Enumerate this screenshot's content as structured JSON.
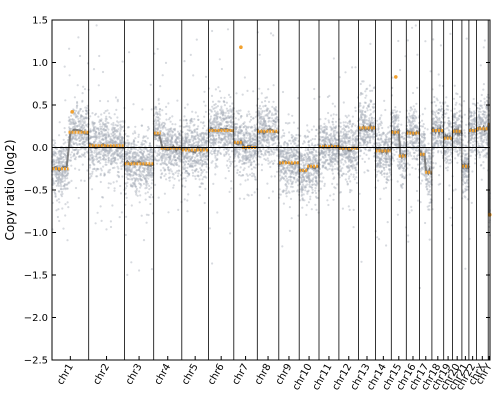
{
  "chart_data": {
    "type": "scatter",
    "title": "",
    "xlabel": "",
    "ylabel": "Copy ratio (log2)",
    "ylim": [
      -2.5,
      1.5
    ],
    "yticks": [
      -2.5,
      -2.0,
      -1.5,
      -1.0,
      -0.5,
      0.0,
      0.5,
      1.0,
      1.5
    ],
    "ytick_labels": [
      "−2.5",
      "−2.0",
      "−1.5",
      "−1.0",
      "−0.5",
      "0.0",
      "0.5",
      "1.0",
      "1.5"
    ],
    "grid": false,
    "baseline": 0.0,
    "colors": {
      "points": "#a7adb7",
      "trend": "#6e6e6e",
      "segments": "#f2a12e",
      "lines": "#000000"
    },
    "chromosomes": [
      {
        "name": "chr1",
        "length": 248,
        "segments": [
          {
            "start": 0,
            "end": 0.45,
            "value": -0.25
          },
          {
            "start": 0.45,
            "end": 1,
            "value": 0.18
          }
        ]
      },
      {
        "name": "chr2",
        "length": 242,
        "segments": [
          {
            "start": 0,
            "end": 1,
            "value": 0.02
          }
        ]
      },
      {
        "name": "chr3",
        "length": 198,
        "segments": [
          {
            "start": 0,
            "end": 1,
            "value": -0.19
          }
        ]
      },
      {
        "name": "chr4",
        "length": 190,
        "segments": [
          {
            "start": 0,
            "end": 0.25,
            "value": 0.17
          },
          {
            "start": 0.25,
            "end": 1,
            "value": -0.01
          }
        ]
      },
      {
        "name": "chr5",
        "length": 181,
        "segments": [
          {
            "start": 0,
            "end": 1,
            "value": -0.03
          }
        ]
      },
      {
        "name": "chr6",
        "length": 171,
        "segments": [
          {
            "start": 0,
            "end": 1,
            "value": 0.2
          }
        ]
      },
      {
        "name": "chr7",
        "length": 159,
        "segments": [
          {
            "start": 0,
            "end": 0.35,
            "value": 0.06
          },
          {
            "start": 0.35,
            "end": 1,
            "value": 0.0
          }
        ]
      },
      {
        "name": "chr8",
        "length": 145,
        "segments": [
          {
            "start": 0,
            "end": 1,
            "value": 0.19
          }
        ]
      },
      {
        "name": "chr9",
        "length": 138,
        "segments": [
          {
            "start": 0,
            "end": 1,
            "value": -0.18
          }
        ]
      },
      {
        "name": "chr10",
        "length": 134,
        "segments": [
          {
            "start": 0,
            "end": 0.4,
            "value": -0.27
          },
          {
            "start": 0.4,
            "end": 1,
            "value": -0.22
          }
        ]
      },
      {
        "name": "chr11",
        "length": 135,
        "segments": [
          {
            "start": 0,
            "end": 1,
            "value": 0.01
          }
        ]
      },
      {
        "name": "chr12",
        "length": 133,
        "segments": [
          {
            "start": 0,
            "end": 1,
            "value": -0.01
          }
        ]
      },
      {
        "name": "chr13",
        "length": 114,
        "segments": [
          {
            "start": 0,
            "end": 1,
            "value": 0.23
          }
        ]
      },
      {
        "name": "chr14",
        "length": 107,
        "segments": [
          {
            "start": 0,
            "end": 1,
            "value": -0.04
          }
        ]
      },
      {
        "name": "chr15",
        "length": 102,
        "segments": [
          {
            "start": 0,
            "end": 0.5,
            "value": 0.18
          },
          {
            "start": 0.5,
            "end": 1,
            "value": -0.1
          }
        ]
      },
      {
        "name": "chr16",
        "length": 90,
        "segments": [
          {
            "start": 0,
            "end": 1,
            "value": 0.17
          }
        ]
      },
      {
        "name": "chr17",
        "length": 83,
        "segments": [
          {
            "start": 0,
            "end": 0.45,
            "value": -0.08
          },
          {
            "start": 0.45,
            "end": 1,
            "value": -0.29
          }
        ]
      },
      {
        "name": "chr18",
        "length": 80,
        "segments": [
          {
            "start": 0,
            "end": 1,
            "value": 0.2
          }
        ]
      },
      {
        "name": "chr19",
        "length": 59,
        "segments": [
          {
            "start": 0,
            "end": 1,
            "value": 0.11
          }
        ]
      },
      {
        "name": "chr20",
        "length": 64,
        "segments": [
          {
            "start": 0,
            "end": 1,
            "value": 0.19
          }
        ]
      },
      {
        "name": "chr21",
        "length": 47,
        "segments": [
          {
            "start": 0,
            "end": 1,
            "value": -0.22
          }
        ]
      },
      {
        "name": "chr22",
        "length": 51,
        "segments": [
          {
            "start": 0,
            "end": 1,
            "value": 0.2
          }
        ]
      },
      {
        "name": "chrX",
        "length": 80,
        "segments": [
          {
            "start": 0,
            "end": 1,
            "value": 0.22
          }
        ]
      },
      {
        "name": "chrY",
        "length": 12,
        "segments": [
          {
            "start": 0,
            "end": 0.5,
            "value": 0.27
          },
          {
            "start": 0.5,
            "end": 1,
            "value": -0.79
          }
        ]
      }
    ],
    "outliers": [
      {
        "chrom": "chr1",
        "pos": 0.55,
        "value": 0.42
      },
      {
        "chrom": "chr7",
        "pos": 0.3,
        "value": 1.18
      },
      {
        "chrom": "chr15",
        "pos": 0.3,
        "value": 0.83
      },
      {
        "chrom": "chrY",
        "pos": 0.9,
        "value": -0.79
      }
    ]
  }
}
